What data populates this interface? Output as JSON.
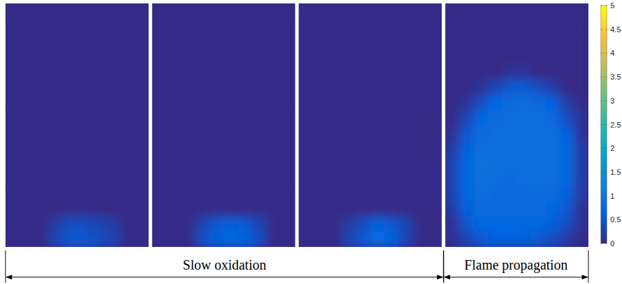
{
  "chart_data": {
    "type": "heatmap",
    "panels": [
      {
        "cells": [
          [
            0,
            0,
            0,
            0,
            0,
            0,
            0,
            0,
            0,
            0
          ],
          [
            0,
            0,
            0,
            0,
            0,
            0,
            0,
            0,
            0,
            0
          ],
          [
            0,
            0,
            0,
            0,
            0,
            0,
            0,
            0,
            0,
            0
          ],
          [
            0,
            0,
            0,
            0,
            0,
            0,
            0,
            0,
            0,
            0
          ],
          [
            0,
            0,
            0,
            0,
            0,
            0,
            0,
            0,
            0,
            0
          ],
          [
            0,
            0,
            0,
            0,
            0,
            0,
            0,
            0,
            0,
            0
          ],
          [
            0,
            0,
            0,
            0,
            0,
            0,
            0,
            0,
            0,
            0
          ],
          [
            0,
            0,
            0,
            0,
            0,
            0,
            0,
            0,
            0,
            0
          ],
          [
            0,
            0,
            0,
            0,
            0,
            0,
            0,
            0,
            0,
            0
          ],
          [
            0,
            0,
            0,
            0,
            0,
            0,
            0,
            0,
            0,
            0
          ],
          [
            0,
            0,
            0,
            0,
            0,
            0,
            0,
            0,
            0,
            0
          ],
          [
            0,
            0,
            0,
            0,
            0,
            0,
            0,
            0,
            0,
            0
          ],
          [
            0,
            0,
            0,
            0,
            0,
            0,
            0,
            0,
            0,
            0
          ],
          [
            0,
            0,
            0,
            0,
            0,
            0,
            0,
            0,
            0,
            0
          ],
          [
            0,
            0,
            0,
            0.2,
            0.4,
            0.4,
            0.3,
            0.2,
            0,
            0
          ],
          [
            0,
            0,
            0,
            0.3,
            0.5,
            0.5,
            0.4,
            0.3,
            0,
            0
          ]
        ]
      },
      {
        "cells": [
          [
            0,
            0,
            0,
            0,
            0,
            0,
            0,
            0,
            0,
            0
          ],
          [
            0,
            0,
            0,
            0,
            0,
            0,
            0,
            0,
            0,
            0
          ],
          [
            0,
            0,
            0,
            0,
            0,
            0,
            0,
            0,
            0,
            0
          ],
          [
            0,
            0,
            0,
            0,
            0,
            0,
            0,
            0,
            0,
            0
          ],
          [
            0,
            0,
            0,
            0,
            0,
            0,
            0,
            0,
            0,
            0
          ],
          [
            0,
            0,
            0,
            0,
            0,
            0,
            0,
            0,
            0,
            0
          ],
          [
            0,
            0,
            0,
            0,
            0,
            0,
            0,
            0,
            0,
            0
          ],
          [
            0,
            0,
            0,
            0,
            0,
            0,
            0,
            0,
            0,
            0
          ],
          [
            0,
            0,
            0,
            0,
            0,
            0,
            0,
            0,
            0,
            0
          ],
          [
            0,
            0,
            0,
            0,
            0,
            0,
            0,
            0,
            0,
            0
          ],
          [
            0,
            0,
            0,
            0,
            0,
            0,
            0,
            0,
            0,
            0
          ],
          [
            0,
            0,
            0,
            0,
            0,
            0,
            0,
            0,
            0,
            0
          ],
          [
            0,
            0,
            0,
            0,
            0,
            0,
            0,
            0,
            0,
            0
          ],
          [
            0,
            0,
            0,
            0,
            0,
            0,
            0,
            0,
            0,
            0
          ],
          [
            0,
            0,
            0,
            0.3,
            0.5,
            0.6,
            0.5,
            0.3,
            0,
            0
          ],
          [
            0,
            0,
            0,
            0.4,
            0.6,
            0.7,
            0.6,
            0.4,
            0,
            0
          ]
        ]
      },
      {
        "cells": [
          [
            0,
            0,
            0,
            0,
            0,
            0,
            0,
            0,
            0,
            0
          ],
          [
            0,
            0,
            0,
            0,
            0,
            0,
            0,
            0,
            0,
            0
          ],
          [
            0,
            0,
            0,
            0,
            0,
            0,
            0,
            0,
            0,
            0
          ],
          [
            0,
            0,
            0,
            0,
            0,
            0,
            0,
            0,
            0,
            0
          ],
          [
            0,
            0,
            0,
            0,
            0,
            0,
            0,
            0,
            0,
            0
          ],
          [
            0,
            0,
            0,
            0,
            0,
            0,
            0,
            0,
            0,
            0
          ],
          [
            0,
            0,
            0,
            0,
            0,
            0,
            0,
            0,
            0,
            0
          ],
          [
            0,
            0,
            0,
            0,
            0,
            0,
            0,
            0,
            0,
            0
          ],
          [
            0,
            0,
            0,
            0,
            0,
            0,
            0,
            0,
            0,
            0
          ],
          [
            0,
            0,
            0,
            0,
            0,
            0,
            0,
            0,
            0,
            0
          ],
          [
            0,
            0,
            0,
            0,
            0,
            0,
            0,
            0,
            0,
            0
          ],
          [
            0,
            0,
            0,
            0,
            0,
            0,
            0,
            0,
            0,
            0
          ],
          [
            0,
            0,
            0,
            0,
            0,
            0,
            0,
            0,
            0,
            0
          ],
          [
            0,
            0,
            0,
            0,
            0,
            0,
            0,
            0,
            0,
            0
          ],
          [
            0,
            0,
            0,
            0.2,
            0.4,
            0.6,
            0.5,
            0.3,
            0,
            0
          ],
          [
            0,
            0,
            0,
            0.3,
            0.5,
            0.8,
            0.6,
            0.3,
            0,
            0
          ]
        ]
      },
      {
        "cells": [
          [
            0,
            0,
            0,
            0,
            0,
            0,
            0,
            0,
            0,
            0
          ],
          [
            0,
            0,
            0,
            0,
            0,
            0,
            0,
            0,
            0,
            0
          ],
          [
            0,
            0,
            0,
            0,
            0,
            0,
            0,
            0,
            0,
            0
          ],
          [
            0,
            0,
            0,
            0,
            0,
            0,
            0,
            0,
            0,
            0
          ],
          [
            0,
            0,
            0,
            0,
            0.1,
            0.1,
            0,
            0,
            0,
            0
          ],
          [
            0,
            0,
            0.1,
            0.3,
            0.5,
            0.5,
            0.4,
            0.2,
            0,
            0
          ],
          [
            0,
            0.1,
            0.4,
            0.7,
            0.8,
            0.9,
            0.8,
            0.6,
            0.2,
            0
          ],
          [
            0,
            0.3,
            0.7,
            0.8,
            0.9,
            0.9,
            0.9,
            0.8,
            0.4,
            0.1
          ],
          [
            0.1,
            0.5,
            0.8,
            0.9,
            0.9,
            0.9,
            0.9,
            0.9,
            0.6,
            0.1
          ],
          [
            0.2,
            0.6,
            0.9,
            0.9,
            0.9,
            0.9,
            0.9,
            0.9,
            0.7,
            0.2
          ],
          [
            0.3,
            0.7,
            1.0,
            0.9,
            0.9,
            0.9,
            0.9,
            0.9,
            0.7,
            0.2
          ],
          [
            0.3,
            0.7,
            0.9,
            0.9,
            0.8,
            0.9,
            0.9,
            0.9,
            0.7,
            0.2
          ],
          [
            0.3,
            0.7,
            0.9,
            0.8,
            0.8,
            0.8,
            0.8,
            0.8,
            0.6,
            0.2
          ],
          [
            0.2,
            0.6,
            0.8,
            0.8,
            0.8,
            0.8,
            0.8,
            0.7,
            0.5,
            0.1
          ],
          [
            0.1,
            0.5,
            0.7,
            0.7,
            0.7,
            0.7,
            0.7,
            0.6,
            0.4,
            0.1
          ],
          [
            0.1,
            0.3,
            0.5,
            0.6,
            0.6,
            0.6,
            0.5,
            0.4,
            0.2,
            0
          ]
        ]
      }
    ],
    "colorbar": {
      "range": [
        0,
        5
      ],
      "ticks": [
        0,
        0.5,
        1,
        1.5,
        2,
        2.5,
        3,
        3.5,
        4,
        4.5,
        5
      ]
    },
    "annotations": [
      {
        "text": "Slow oxidation",
        "panels": [
          0,
          2
        ]
      },
      {
        "text": "Flame propagation",
        "panels": [
          3,
          3
        ]
      }
    ]
  }
}
